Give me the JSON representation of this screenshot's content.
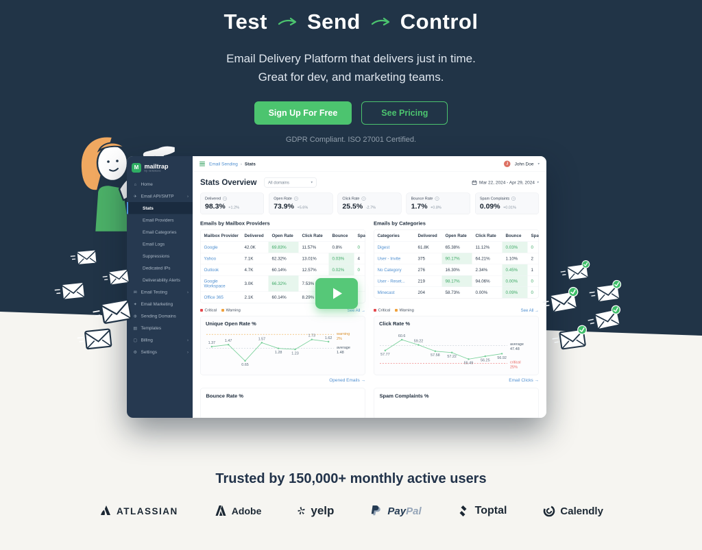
{
  "colors": {
    "accent_green": "#4cc46f",
    "navy": "#213447",
    "link_blue": "#4f8fd0",
    "critical": "#e5484d",
    "warning": "#f0a13c",
    "good_green": "#3da865"
  },
  "hero": {
    "title_words": [
      "Test",
      "Send",
      "Control"
    ],
    "subtitle_line1": "Email Delivery Platform that delivers just in time.",
    "subtitle_line2": "Great for dev, and marketing teams.",
    "cta_primary": "Sign Up For Free",
    "cta_secondary": "See Pricing",
    "compliance": "GDPR Compliant. ISO 27001 Certified."
  },
  "dashboard": {
    "logo": {
      "name": "mailtrap",
      "byline": "by railsware",
      "mark": "M"
    },
    "sidebar": {
      "items": [
        {
          "label": "Home",
          "icon": "home",
          "indent": 0
        },
        {
          "label": "Email API/SMTP",
          "icon": "send",
          "indent": 0,
          "expandable": true
        },
        {
          "label": "Stats",
          "indent": 1,
          "active": true
        },
        {
          "label": "Email Providers",
          "indent": 1
        },
        {
          "label": "Email Categories",
          "indent": 1
        },
        {
          "label": "Email Logs",
          "indent": 1
        },
        {
          "label": "Suppressions",
          "indent": 1
        },
        {
          "label": "Dedicated IPs",
          "indent": 1
        },
        {
          "label": "Deliverability Alerts",
          "indent": 1
        },
        {
          "label": "Email Testing",
          "icon": "mail",
          "indent": 0,
          "expandable": true
        },
        {
          "label": "Email Marketing",
          "icon": "spark",
          "indent": 0
        },
        {
          "label": "Sending Domains",
          "icon": "globe",
          "indent": 0
        },
        {
          "label": "Templates",
          "icon": "template",
          "indent": 0
        },
        {
          "label": "Billing",
          "icon": "card",
          "indent": 0,
          "expandable": true
        },
        {
          "label": "Settings",
          "icon": "gear",
          "indent": 0,
          "expandable": true
        }
      ]
    },
    "topbar": {
      "breadcrumb": [
        "Email Sending",
        "Stats"
      ],
      "user": "John Doe",
      "avatar_initial": "J"
    },
    "overview": {
      "title": "Stats Overview",
      "domain_filter": "All domains",
      "date_range": "Mar 22, 2024 - Apr 29, 2024"
    },
    "stat_cards": [
      {
        "label": "Delivered",
        "value": "98.3%",
        "delta": "+1.2%"
      },
      {
        "label": "Open Rate",
        "value": "73.9%",
        "delta": "+5.6%"
      },
      {
        "label": "Click Rate",
        "value": "25.5%",
        "delta": "-2.7%"
      },
      {
        "label": "Bounce Rate",
        "value": "1.7%",
        "delta": "+0.8%"
      },
      {
        "label": "Spam Complaints",
        "value": "0.09%",
        "delta": "+0.01%"
      }
    ],
    "tables": [
      {
        "title": "Emails by Mailbox Providers",
        "columns": [
          "Mailbox Provider",
          "Delivered",
          "Open Rate",
          "Click Rate",
          "Bounce",
          "Spam..."
        ],
        "rows": [
          {
            "name": "Google",
            "cells": [
              [
                "42.0K",
                ""
              ],
              [
                "69.83%",
                "bg"
              ],
              [
                "11.57%",
                ""
              ],
              [
                "0.8%",
                ""
              ],
              [
                "0",
                "text"
              ]
            ]
          },
          {
            "name": "Yahoo",
            "cells": [
              [
                "7.1K",
                ""
              ],
              [
                "62.32%",
                ""
              ],
              [
                "13.01%",
                ""
              ],
              [
                "0.03%",
                "bg"
              ],
              [
                "4",
                ""
              ]
            ]
          },
          {
            "name": "Outlook",
            "cells": [
              [
                "4.7K",
                ""
              ],
              [
                "60.14%",
                ""
              ],
              [
                "12.57%",
                ""
              ],
              [
                "0.02%",
                "bg"
              ],
              [
                "0",
                "text"
              ]
            ]
          },
          {
            "name": "Google Workspace",
            "cells": [
              [
                "3.0K",
                ""
              ],
              [
                "66.32%",
                "bg"
              ],
              [
                "7.53%",
                ""
              ],
              [
                "",
                ""
              ],
              [
                "",
                ""
              ]
            ]
          },
          {
            "name": "Office 365",
            "cells": [
              [
                "2.1K",
                ""
              ],
              [
                "60.14%",
                ""
              ],
              [
                "8.29%",
                ""
              ],
              [
                "",
                ""
              ],
              [
                "",
                ""
              ]
            ]
          }
        ]
      },
      {
        "title": "Emails by Categories",
        "columns": [
          "Categories",
          "Delivered",
          "Open Rate",
          "Click Rate",
          "Bounce",
          "Spam..."
        ],
        "rows": [
          {
            "name": "Digest",
            "cells": [
              [
                "61.8K",
                ""
              ],
              [
                "65.38%",
                ""
              ],
              [
                "11.12%",
                ""
              ],
              [
                "0.03%",
                "bg"
              ],
              [
                "0",
                "text"
              ]
            ]
          },
          {
            "name": "User - Invite",
            "cells": [
              [
                "375",
                ""
              ],
              [
                "90.17%",
                "bg"
              ],
              [
                "64.21%",
                ""
              ],
              [
                "1.10%",
                ""
              ],
              [
                "2",
                ""
              ]
            ]
          },
          {
            "name": "No Category",
            "cells": [
              [
                "276",
                ""
              ],
              [
                "16.30%",
                ""
              ],
              [
                "2.34%",
                ""
              ],
              [
                "0.45%",
                "bg"
              ],
              [
                "1",
                ""
              ]
            ]
          },
          {
            "name": "User - Reset...",
            "cells": [
              [
                "219",
                ""
              ],
              [
                "98.17%",
                "bg"
              ],
              [
                "94.06%",
                ""
              ],
              [
                "0.00%",
                "bg"
              ],
              [
                "0",
                "text"
              ]
            ]
          },
          {
            "name": "Minecast",
            "cells": [
              [
                "204",
                ""
              ],
              [
                "58.73%",
                ""
              ],
              [
                "0.00%",
                ""
              ],
              [
                "0.09%",
                "bg"
              ],
              [
                "0",
                "text"
              ]
            ]
          }
        ]
      }
    ],
    "chart_sections": [
      {
        "legend": [
          {
            "label": "Critical",
            "color": "#e5484d"
          },
          {
            "label": "Warning",
            "color": "#f0a13c"
          }
        ],
        "see_all": "See All →",
        "link": "Opened Emails →"
      },
      {
        "legend": [
          {
            "label": "Critical",
            "color": "#e5484d"
          },
          {
            "label": "Warning",
            "color": "#f0a13c"
          }
        ],
        "see_all": "See All →",
        "link": "Email Clicks →"
      }
    ],
    "bottom_cards": [
      "Bounce Rate %",
      "Spam Complaints %"
    ]
  },
  "chart_data": [
    {
      "type": "line",
      "title": "Unique Open Rate %",
      "values": [
        1.37,
        1.47,
        0.65,
        1.57,
        1.28,
        1.23,
        1.73,
        1.62
      ],
      "point_labels": [
        "1.37",
        "1.47",
        "0.65",
        "1.57",
        "1.28",
        "1.23",
        "1.73",
        "1.62"
      ],
      "ylim": [
        0.45,
        1.95
      ],
      "grid": false,
      "legend_position": "above-left",
      "thresholds": [
        {
          "name": "warning",
          "display": "2%"
        },
        {
          "name": "average",
          "display": "1.48"
        }
      ]
    },
    {
      "type": "line",
      "title": "Click Rate %",
      "values": [
        57.77,
        60.6,
        59.22,
        57.58,
        57.22,
        55.49,
        56.25,
        56.92
      ],
      "point_labels": [
        "57.77",
        "60.6",
        "59.22",
        "57.58",
        "57.22",
        "55.49",
        "56.25",
        "56.92"
      ],
      "ylim": [
        54,
        61.8
      ],
      "grid": false,
      "legend_position": "above-left",
      "thresholds": [
        {
          "name": "average",
          "display": "47.48"
        },
        {
          "name": "critical",
          "display": "25%"
        }
      ]
    }
  ],
  "trusted": {
    "heading": "Trusted by 150,000+ monthly active users",
    "logos": [
      {
        "name": "atlassian",
        "label": "ATLASSIAN"
      },
      {
        "name": "adobe",
        "label": "Adobe"
      },
      {
        "name": "yelp",
        "label": "yelp"
      },
      {
        "name": "paypal",
        "label_a": "Pay",
        "label_b": "Pal"
      },
      {
        "name": "toptal",
        "label": "Toptal"
      },
      {
        "name": "calendly",
        "label": "Calendly"
      }
    ]
  }
}
